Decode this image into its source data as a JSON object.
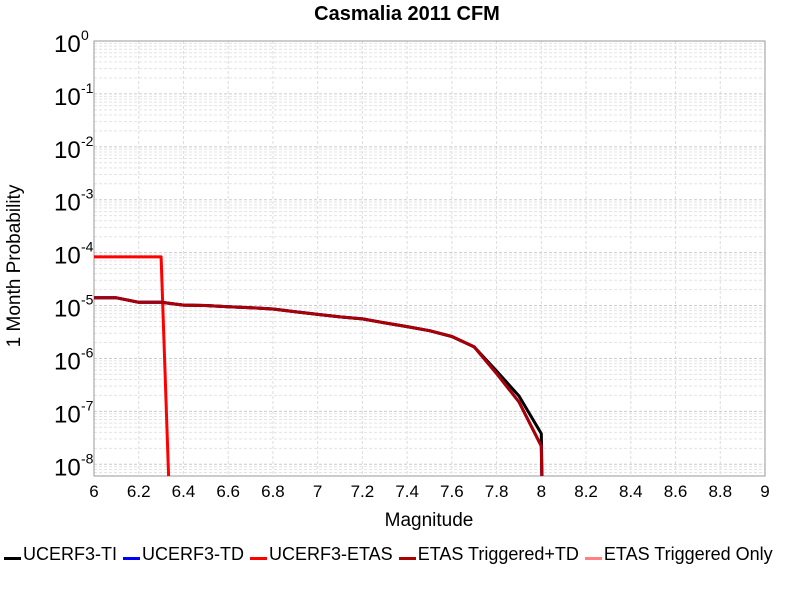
{
  "chart_data": {
    "type": "line",
    "title": "Casmalia 2011 CFM",
    "xlabel": "Magnitude",
    "ylabel": "1 Month Probability",
    "xlim": [
      6,
      9
    ],
    "ylim": [
      6e-09,
      1
    ],
    "yscale": "log",
    "grid": true,
    "legend_position": "bottom",
    "x_ticks": [
      "6",
      "6.2",
      "6.4",
      "6.6",
      "6.8",
      "7",
      "7.2",
      "7.4",
      "7.6",
      "7.8",
      "8",
      "8.2",
      "8.4",
      "8.6",
      "8.8",
      "9"
    ],
    "y_tick_base": "10",
    "y_tick_exponents": [
      "0",
      "-1",
      "-2",
      "-3",
      "-4",
      "-5",
      "-6",
      "-7",
      "-8"
    ],
    "series": [
      {
        "name": "UCERF3-TI",
        "color": "#000000",
        "x": [
          6.0,
          6.1,
          6.2,
          6.3,
          6.4,
          6.5,
          6.6,
          6.7,
          6.8,
          6.9,
          7.0,
          7.1,
          7.2,
          7.3,
          7.4,
          7.5,
          7.6,
          7.7,
          7.8,
          7.9,
          8.0,
          8.005
        ],
        "y": [
          1.4e-05,
          1.4e-05,
          1.15e-05,
          1.15e-05,
          1.02e-05,
          1e-05,
          9.5e-06,
          9.1e-06,
          8.6e-06,
          7.6e-06,
          6.8e-06,
          6.1e-06,
          5.6e-06,
          4.7e-06,
          4e-06,
          3.35e-06,
          2.6e-06,
          1.65e-06,
          5.8e-07,
          1.95e-07,
          3.8e-08,
          1e-09
        ]
      },
      {
        "name": "UCERF3-TD",
        "color": "#0000ff",
        "x": [
          6.0,
          6.1,
          6.2,
          6.3,
          6.4,
          6.5,
          6.6,
          6.7,
          6.8,
          6.9,
          7.0,
          7.1,
          7.2,
          7.3,
          7.4,
          7.5,
          7.6,
          7.7,
          7.8,
          7.9,
          8.0,
          8.005
        ],
        "y": [
          1.4e-05,
          1.4e-05,
          1.15e-05,
          1.15e-05,
          1.02e-05,
          1e-05,
          9.5e-06,
          9.1e-06,
          8.6e-06,
          7.6e-06,
          6.8e-06,
          6.1e-06,
          5.6e-06,
          4.7e-06,
          4e-06,
          3.35e-06,
          2.6e-06,
          1.65e-06,
          5.2e-07,
          1.5e-07,
          2.2e-08,
          1e-09
        ]
      },
      {
        "name": "UCERF3-ETAS",
        "color": "#ff0000",
        "x": [
          6.0,
          6.3,
          6.34
        ],
        "y": [
          8.3e-05,
          8.3e-05,
          1e-09
        ]
      },
      {
        "name": "ETAS Triggered+TD",
        "color": "#aa0000",
        "x": [
          6.0,
          6.1,
          6.2,
          6.3,
          6.4,
          6.5,
          6.6,
          6.7,
          6.8,
          6.9,
          7.0,
          7.1,
          7.2,
          7.3,
          7.4,
          7.5,
          7.6,
          7.7,
          7.8,
          7.9,
          8.0,
          8.005
        ],
        "y": [
          1.4e-05,
          1.4e-05,
          1.15e-05,
          1.15e-05,
          1.02e-05,
          1e-05,
          9.5e-06,
          9.1e-06,
          8.6e-06,
          7.6e-06,
          6.8e-06,
          6.1e-06,
          5.6e-06,
          4.7e-06,
          4e-06,
          3.35e-06,
          2.6e-06,
          1.65e-06,
          5.2e-07,
          1.5e-07,
          2.2e-08,
          1e-09
        ]
      },
      {
        "name": "ETAS Triggered Only",
        "color": "#ff8080",
        "x": [],
        "y": []
      }
    ]
  }
}
